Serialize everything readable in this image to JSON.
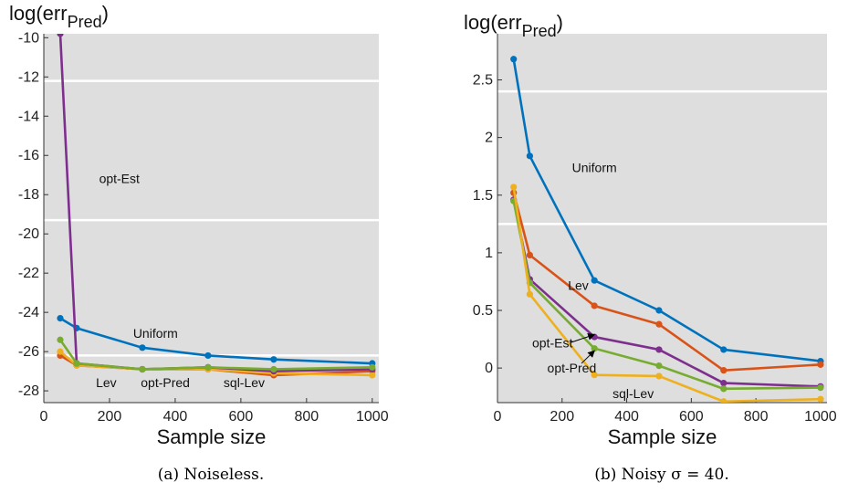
{
  "chart_data": [
    {
      "type": "line",
      "ylabel_main": "log(err",
      "ylabel_sub": "Pred",
      "ylabel_close": ")",
      "xlabel": "Sample size",
      "caption": "(a) Noiseless.",
      "xlim": [
        0,
        1020
      ],
      "ylim": [
        -28.6,
        -9.8
      ],
      "xticks": [
        0,
        200,
        400,
        600,
        800,
        1000
      ],
      "yticks": [
        -28,
        -26,
        -24,
        -22,
        -20,
        -18,
        -16,
        -14,
        -12,
        -10
      ],
      "grid": "horizontal",
      "x": [
        50,
        100,
        300,
        500,
        700,
        1000
      ],
      "series": [
        {
          "name": "Uniform",
          "color": "#0072BD",
          "values": [
            -24.3,
            -24.8,
            -25.8,
            -26.2,
            -26.4,
            -26.6
          ]
        },
        {
          "name": "Lev",
          "color": "#D95319",
          "values": [
            -26.2,
            -26.7,
            -26.9,
            -26.9,
            -27.2,
            -27.0
          ]
        },
        {
          "name": "sql-Lev",
          "color": "#EDB120",
          "values": [
            -26.0,
            -26.7,
            -26.9,
            -26.9,
            -27.1,
            -27.2
          ]
        },
        {
          "name": "opt-Est",
          "color": "#7E2F8E",
          "values": [
            -9.8,
            -26.6,
            -26.9,
            -26.8,
            -27.0,
            -26.9
          ]
        },
        {
          "name": "opt-Pred",
          "color": "#77AC30",
          "values": [
            -25.4,
            -26.6,
            -26.9,
            -26.8,
            -26.9,
            -26.8
          ]
        }
      ],
      "annotations": [
        {
          "text": "opt-Est",
          "x": 230,
          "y": -17.4
        },
        {
          "text": "Uniform",
          "x": 340,
          "y": -25.3
        },
        {
          "text": "Lev",
          "x": 190,
          "y": -27.8
        },
        {
          "text": "opt-Pred",
          "x": 370,
          "y": -27.8
        },
        {
          "text": "sql-Lev",
          "x": 610,
          "y": -27.8
        }
      ]
    },
    {
      "type": "line",
      "ylabel_main": "log(err",
      "ylabel_sub": "Pred",
      "ylabel_close": ")",
      "xlabel": "Sample size",
      "caption": "(b) Noisy σ = 40.",
      "xlim": [
        0,
        1020
      ],
      "ylim": [
        -0.3,
        2.9
      ],
      "xticks": [
        0,
        200,
        400,
        600,
        800,
        1000
      ],
      "yticks": [
        0,
        0.5,
        1,
        1.5,
        2,
        2.5
      ],
      "ytick_labels": [
        "0",
        "0.5",
        "1",
        "1.5",
        "2",
        "2.5"
      ],
      "grid": "horizontal",
      "x": [
        50,
        100,
        300,
        500,
        700,
        1000
      ],
      "series": [
        {
          "name": "Uniform",
          "color": "#0072BD",
          "values": [
            2.68,
            1.84,
            0.76,
            0.5,
            0.16,
            0.06
          ]
        },
        {
          "name": "Lev",
          "color": "#D95319",
          "values": [
            1.52,
            0.98,
            0.54,
            0.38,
            -0.02,
            0.03
          ]
        },
        {
          "name": "opt-Est",
          "color": "#7E2F8E",
          "values": [
            1.46,
            0.77,
            0.27,
            0.16,
            -0.13,
            -0.16
          ]
        },
        {
          "name": "opt-Pred",
          "color": "#77AC30",
          "values": [
            1.45,
            0.74,
            0.17,
            0.02,
            -0.18,
            -0.17
          ]
        },
        {
          "name": "sql-Lev",
          "color": "#EDB120",
          "values": [
            1.57,
            0.64,
            -0.06,
            -0.07,
            -0.29,
            -0.27
          ]
        }
      ],
      "annotations": [
        {
          "text": "Uniform",
          "x": 300,
          "y": 1.7
        },
        {
          "text": "Lev",
          "x": 250,
          "y": 0.68
        },
        {
          "text": "opt-Est",
          "x": 170,
          "y": 0.18
        },
        {
          "text": "opt-Pred",
          "x": 230,
          "y": -0.04
        },
        {
          "text": "sql-Lev",
          "x": 420,
          "y": -0.26
        }
      ]
    }
  ]
}
